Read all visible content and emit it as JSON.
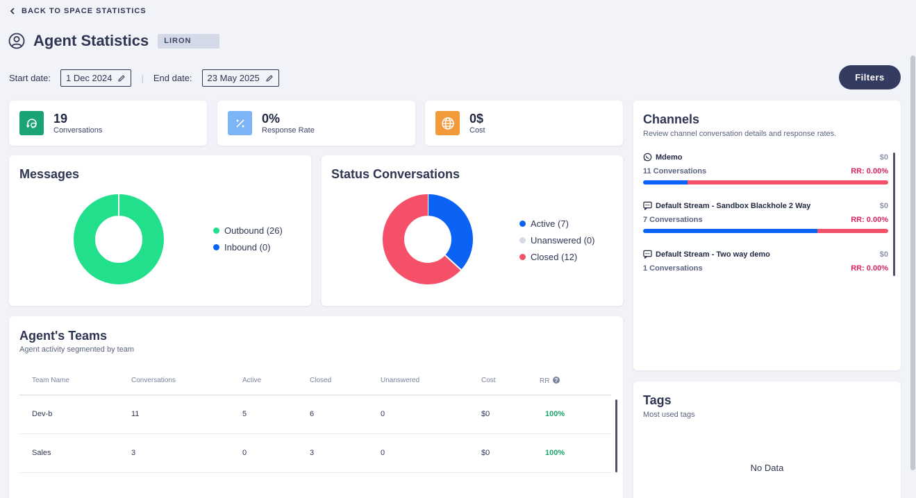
{
  "nav": {
    "back_label": "BACK TO SPACE STATISTICS"
  },
  "header": {
    "title": "Agent Statistics",
    "badge": "LIRON"
  },
  "dates": {
    "start_label": "Start date:",
    "start_value": "1 Dec 2024",
    "end_label": "End date:",
    "end_value": "23 May 2025",
    "separator": "|"
  },
  "filters_label": "Filters",
  "stats": [
    {
      "value": "19",
      "label": "Conversations",
      "icon": "chat-refresh-icon",
      "color": "#1aa374"
    },
    {
      "value": "0%",
      "label": "Response Rate",
      "icon": "percent-icon",
      "color": "#7cb4f5"
    },
    {
      "value": "0$",
      "label": "Cost",
      "icon": "globe-icon",
      "color": "#f29a3a"
    }
  ],
  "messages": {
    "title": "Messages",
    "chart_data": {
      "type": "pie",
      "categories": [
        "Outbound",
        "Inbound"
      ],
      "values": [
        26,
        0
      ],
      "colors": [
        "#22df8c",
        "#0a63f5"
      ]
    },
    "legend": [
      "Outbound (26)",
      "Inbound (0)"
    ]
  },
  "status": {
    "title": "Status Conversations",
    "chart_data": {
      "type": "pie",
      "categories": [
        "Active",
        "Unanswered",
        "Closed"
      ],
      "values": [
        7,
        0,
        12
      ],
      "colors": [
        "#0a63f5",
        "#d3d9e6",
        "#f4506a"
      ]
    },
    "legend": [
      "Active (7)",
      "Unanswered (0)",
      "Closed (12)"
    ]
  },
  "teams": {
    "title": "Agent's Teams",
    "subtitle": "Agent activity segmented by team",
    "columns": [
      "Team Name",
      "Conversations",
      "Active",
      "Closed",
      "Unanswered",
      "Cost",
      "RR"
    ],
    "rows": [
      [
        "Dev-b",
        "11",
        "5",
        "6",
        "0",
        "$0",
        "100%"
      ],
      [
        "Sales",
        "3",
        "0",
        "3",
        "0",
        "$0",
        "100%"
      ]
    ]
  },
  "channels": {
    "title": "Channels",
    "subtitle": "Review channel conversation details and response rates.",
    "items": [
      {
        "name": "Mdemo",
        "cost": "$0",
        "conversations": "11 Conversations",
        "rr": "RR: 0.00%",
        "icon": "whatsapp-icon",
        "blue_fraction": 0.18
      },
      {
        "name": "Default Stream - Sandbox Blackhole 2 Way",
        "cost": "$0",
        "conversations": "7 Conversations",
        "rr": "RR: 0.00%",
        "icon": "sms-icon",
        "blue_fraction": 0.71
      },
      {
        "name": "Default Stream - Two way demo",
        "cost": "$0",
        "conversations": "1 Conversations",
        "rr": "RR: 0.00%",
        "icon": "sms-icon",
        "blue_fraction": null
      }
    ]
  },
  "tags": {
    "title": "Tags",
    "subtitle": "Most used tags",
    "empty": "No Data"
  }
}
